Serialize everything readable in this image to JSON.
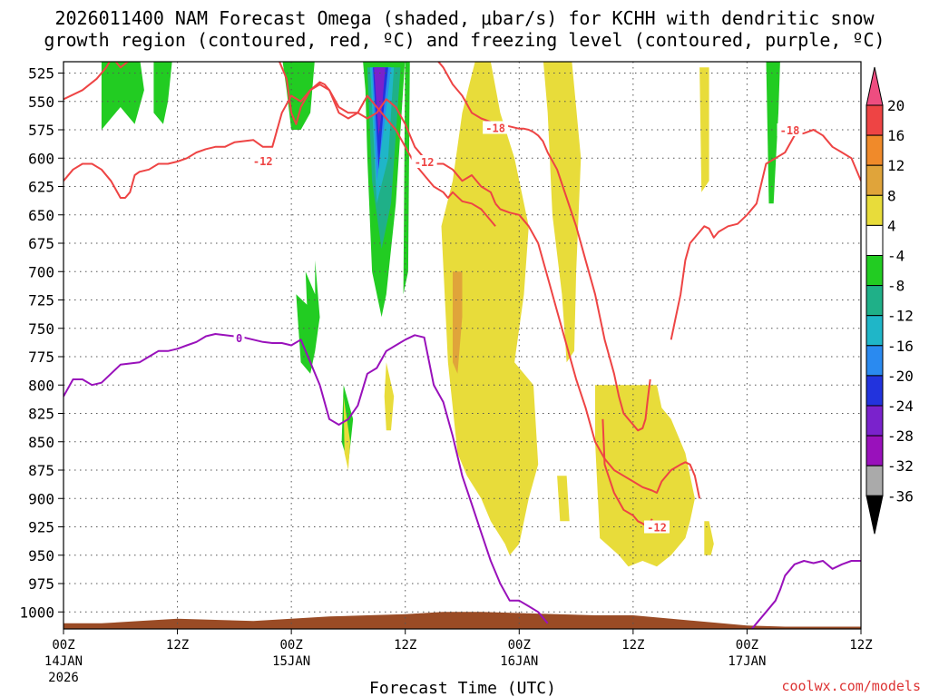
{
  "chart_data": {
    "type": "time-height",
    "title_line1": "2026011400 NAM Forecast Omega (shaded, μbar/s) for KCHH with dendritic snow",
    "title_line2": "growth region (contoured, red, ºC) and freezing level (contoured, purple, ºC)",
    "xlabel": "Forecast Time (UTC)",
    "credit": "coolwx.com/models",
    "x_range_hours": [
      0,
      84
    ],
    "y_range_hpa": [
      1015,
      515
    ],
    "x_ticks": [
      {
        "hour": 0,
        "label": "00Z",
        "sub1": "14JAN",
        "sub2": "2026"
      },
      {
        "hour": 12,
        "label": "12Z",
        "sub1": "",
        "sub2": ""
      },
      {
        "hour": 24,
        "label": "00Z",
        "sub1": "15JAN",
        "sub2": ""
      },
      {
        "hour": 36,
        "label": "12Z",
        "sub1": "",
        "sub2": ""
      },
      {
        "hour": 48,
        "label": "00Z",
        "sub1": "16JAN",
        "sub2": ""
      },
      {
        "hour": 60,
        "label": "12Z",
        "sub1": "",
        "sub2": ""
      },
      {
        "hour": 72,
        "label": "00Z",
        "sub1": "17JAN",
        "sub2": ""
      },
      {
        "hour": 84,
        "label": "12Z",
        "sub1": "",
        "sub2": ""
      }
    ],
    "y_ticks": [
      525,
      550,
      575,
      600,
      625,
      650,
      675,
      700,
      725,
      750,
      775,
      800,
      825,
      850,
      875,
      900,
      925,
      950,
      975,
      1000
    ],
    "colorbar": {
      "levels": [
        20,
        16,
        12,
        8,
        4,
        -4,
        -8,
        -12,
        -16,
        -20,
        -24,
        -28,
        -32,
        -36
      ],
      "colors": [
        "#ee4d80",
        "#ee4444",
        "#f08a2a",
        "#e0a43a",
        "#e8dc3a",
        "#ffffff",
        "#22cc22",
        "#1fb088",
        "#1fb6c8",
        "#2a8af0",
        "#2233dd",
        "#7a22cc",
        "#9911bb",
        "#aaaaaa",
        "#000000"
      ]
    },
    "omega_regions": [
      {
        "value": -6,
        "color": "#22cc22",
        "t": [
          2.0,
          4.0,
          4.0,
          4.5,
          5.0,
          6.0,
          6.5,
          7.5,
          8.5,
          8.0,
          2.0
        ],
        "p": [
          510,
          510,
          575,
          570,
          565,
          555,
          560,
          570,
          540,
          510,
          510
        ]
      },
      {
        "value": -6,
        "color": "#22cc22",
        "t": [
          9.5,
          11.5,
          11.0,
          10.5,
          9.5
        ],
        "p": [
          510,
          510,
          550,
          570,
          560
        ]
      },
      {
        "value": -6,
        "color": "#22cc22",
        "t": [
          23.0,
          26.5,
          26.0,
          25.0,
          24.0,
          23.5
        ],
        "p": [
          510,
          510,
          560,
          575,
          575,
          540
        ]
      },
      {
        "value": -6,
        "color": "#22cc22",
        "t": [
          31.5,
          36.0,
          35.0,
          34.0,
          33.5,
          32.5,
          32.0,
          31.8
        ],
        "p": [
          510,
          510,
          640,
          720,
          740,
          700,
          600,
          540
        ]
      },
      {
        "value": -10,
        "color": "#1fb088",
        "t": [
          32.0,
          35.5,
          34.5,
          33.5,
          32.5
        ],
        "p": [
          520,
          520,
          640,
          680,
          620
        ]
      },
      {
        "value": -14,
        "color": "#1fb6c8",
        "t": [
          32.3,
          34.8,
          34.2,
          33.0
        ],
        "p": [
          520,
          520,
          600,
          640
        ]
      },
      {
        "value": -18,
        "color": "#2a8af0",
        "t": [
          32.5,
          34.5,
          33.8,
          33.0
        ],
        "p": [
          520,
          520,
          570,
          620
        ]
      },
      {
        "value": -22,
        "color": "#2233dd",
        "t": [
          32.6,
          34.2,
          33.7,
          33.2
        ],
        "p": [
          520,
          520,
          560,
          610
        ]
      },
      {
        "value": -26,
        "color": "#7a22cc",
        "t": [
          32.7,
          33.9,
          33.5,
          33.2
        ],
        "p": [
          520,
          520,
          560,
          580
        ]
      },
      {
        "value": -6,
        "color": "#22cc22",
        "t": [
          25.5,
          26.5,
          26.5,
          27.0,
          26.5,
          25.8
        ],
        "p": [
          700,
          720,
          690,
          740,
          760,
          760
        ]
      },
      {
        "value": -6,
        "color": "#22cc22",
        "t": [
          24.5,
          27.0,
          26.5,
          26.0,
          25.0
        ],
        "p": [
          720,
          740,
          770,
          790,
          780
        ]
      },
      {
        "value": -6,
        "color": "#22cc22",
        "t": [
          29.5,
          30.5,
          30.0,
          29.3
        ],
        "p": [
          800,
          830,
          870,
          850
        ]
      },
      {
        "value": -6,
        "color": "#22cc22",
        "t": [
          36.0,
          36.5,
          36.3,
          35.8
        ],
        "p": [
          500,
          500,
          700,
          720
        ]
      },
      {
        "value": -6,
        "color": "#22cc22",
        "t": [
          74.0,
          75.5,
          75.3,
          74.8,
          74.3
        ],
        "p": [
          510,
          510,
          560,
          640,
          640
        ]
      },
      {
        "value": 6,
        "color": "#e8dc3a",
        "t": [
          43.5,
          45.0,
          46.0,
          47.5,
          49.0,
          48.5,
          47.5,
          49.5,
          50.0,
          49.0,
          48.0,
          47.0,
          46.5,
          45.0,
          44.0,
          42.5,
          41.5,
          40.5,
          39.8,
          41.0,
          42.0
        ],
        "p": [
          510,
          515,
          560,
          600,
          660,
          720,
          780,
          800,
          870,
          900,
          940,
          950,
          940,
          920,
          900,
          880,
          860,
          780,
          660,
          620,
          560
        ]
      },
      {
        "value": 6,
        "color": "#e8dc3a",
        "t": [
          50.5,
          53.5,
          54.5,
          54.0,
          53.8,
          53.0,
          52.5,
          51.5,
          51.0
        ],
        "p": [
          510,
          510,
          600,
          700,
          770,
          780,
          720,
          650,
          560
        ]
      },
      {
        "value": 6,
        "color": "#e8dc3a",
        "t": [
          56.0,
          62.5,
          63.0,
          64.0,
          65.5,
          66.5,
          66.0,
          65.5,
          64.0,
          62.5,
          61.0,
          59.5,
          58.5,
          56.5,
          56.0
        ],
        "p": [
          800,
          800,
          820,
          830,
          860,
          900,
          920,
          935,
          950,
          960,
          955,
          960,
          950,
          935,
          850
        ]
      },
      {
        "value": 6,
        "color": "#e8dc3a",
        "t": [
          67.5,
          68.0,
          68.5,
          68.2,
          67.5
        ],
        "p": [
          920,
          920,
          940,
          950,
          950
        ]
      },
      {
        "value": 6,
        "color": "#e8dc3a",
        "t": [
          34.0,
          34.8,
          34.5,
          34.0,
          33.8
        ],
        "p": [
          780,
          810,
          840,
          840,
          810
        ]
      },
      {
        "value": 6,
        "color": "#e8dc3a",
        "t": [
          29.5,
          30.2,
          30.0,
          29.6
        ],
        "p": [
          810,
          850,
          875,
          860
        ]
      },
      {
        "value": 6,
        "color": "#e8dc3a",
        "t": [
          52.0,
          53.0,
          53.3,
          52.3
        ],
        "p": [
          880,
          880,
          920,
          920
        ]
      },
      {
        "value": 6,
        "color": "#e8dc3a",
        "t": [
          67.0,
          68.0,
          68.0,
          67.2
        ],
        "p": [
          520,
          520,
          620,
          630
        ]
      },
      {
        "value": 10,
        "color": "#e0a43a",
        "t": [
          41.0,
          42.0,
          42.0,
          41.5,
          41.0
        ],
        "p": [
          700,
          700,
          740,
          790,
          780
        ]
      }
    ],
    "contours": [
      {
        "name": "dgz-upper-m18",
        "color": "#ee4444",
        "label": "-18",
        "t": [
          0,
          2,
          3.5,
          4.5,
          5,
          5.5,
          6,
          7.5,
          8,
          9,
          10,
          11,
          12,
          13,
          14,
          15,
          16,
          17,
          18,
          19,
          20,
          20.5,
          21,
          22,
          22.5,
          23,
          23.5,
          24,
          24.5,
          25,
          26,
          27,
          27.5,
          28,
          29,
          30,
          31,
          32,
          33,
          34,
          35,
          36,
          37,
          38,
          39,
          40,
          40.5,
          41,
          42,
          43,
          44,
          45,
          45.5
        ],
        "p": [
          548,
          540,
          530,
          520,
          513,
          515,
          520,
          510,
          508,
          505,
          500,
          502,
          505,
          500,
          510,
          512,
          510,
          508,
          506,
          505,
          500,
          502,
          505,
          510,
          510,
          520,
          530,
          560,
          570,
          555,
          540,
          533,
          535,
          540,
          560,
          565,
          560,
          545,
          555,
          565,
          575,
          590,
          605,
          615,
          625,
          630,
          635,
          630,
          638,
          640,
          645,
          655,
          660
        ]
      },
      {
        "name": "dgz-lower-m12",
        "color": "#ee4444",
        "label": "-12",
        "t": [
          0,
          1,
          2,
          3,
          4,
          5,
          6,
          6.5,
          7,
          7.5,
          8,
          9,
          10,
          11,
          12,
          13,
          14,
          15,
          16,
          17,
          18,
          19,
          20,
          21,
          22,
          23,
          24,
          25,
          26,
          27,
          28,
          29,
          30,
          31,
          32,
          33,
          34,
          35,
          36,
          37,
          38,
          39,
          40,
          41,
          42,
          43,
          44,
          45,
          45.5
        ],
        "p": [
          620,
          610,
          605,
          605,
          610,
          620,
          635,
          635,
          630,
          615,
          612,
          610,
          605,
          605,
          603,
          600,
          595,
          592,
          590,
          590,
          586,
          585,
          584,
          590,
          590,
          560,
          545,
          550,
          540,
          535,
          540,
          555,
          560,
          560,
          565,
          560,
          548,
          555,
          570,
          590,
          600,
          605,
          605,
          610,
          620,
          615,
          625,
          630,
          640
        ]
      },
      {
        "name": "dgz-m18-descending",
        "color": "#ee4444",
        "label": "",
        "t": [
          39,
          40,
          41,
          42,
          43,
          44,
          45,
          46,
          47,
          48,
          48.5,
          49,
          49.5,
          50,
          50.5,
          51,
          52,
          53,
          54,
          55,
          56,
          57,
          58,
          58.5,
          59,
          59.5,
          60,
          60.5,
          61,
          61.3,
          61.5,
          61.8
        ],
        "p": [
          510,
          520,
          535,
          545,
          560,
          565,
          568,
          570,
          572,
          574,
          574,
          575,
          577,
          580,
          585,
          595,
          610,
          635,
          660,
          690,
          720,
          760,
          790,
          810,
          825,
          830,
          835,
          840,
          838,
          830,
          815,
          795
        ]
      },
      {
        "name": "dgz-m12-descending",
        "color": "#ee4444",
        "label": "",
        "t": [
          45.5,
          46,
          47,
          48,
          49,
          50,
          51,
          52,
          53,
          54,
          55,
          56,
          57,
          58,
          59,
          60,
          61,
          62,
          62.5,
          63,
          64,
          65,
          65.5,
          66,
          66.5,
          67
        ],
        "p": [
          640,
          645,
          648,
          650,
          660,
          675,
          705,
          735,
          765,
          795,
          820,
          850,
          865,
          875,
          880,
          885,
          890,
          893,
          895,
          885,
          875,
          870,
          868,
          870,
          880,
          900
        ]
      },
      {
        "name": "dgz-m12-lower-end",
        "color": "#ee4444",
        "label": "-12",
        "t": [
          56.8,
          57,
          58,
          59,
          60,
          60.5,
          61,
          61.5,
          62
        ],
        "p": [
          830,
          870,
          895,
          910,
          915,
          920,
          922,
          925,
          918
        ]
      },
      {
        "name": "dgz-m18-right",
        "color": "#ee4444",
        "label": "-18",
        "t": [
          64.0,
          64.5,
          65.0,
          65.5,
          66.0,
          67.0,
          67.5,
          68.0,
          68.5,
          69.0,
          70.0,
          71.0,
          72.0,
          73.0,
          74.0,
          75.0,
          76.0,
          77.0,
          78.0,
          79.0,
          80.0,
          81.0,
          82.0,
          83.0,
          84.0
        ],
        "p": [
          760,
          740,
          720,
          690,
          675,
          665,
          660,
          662,
          670,
          665,
          660,
          658,
          650,
          640,
          605,
          600,
          595,
          580,
          578,
          575,
          580,
          590,
          595,
          600,
          620
        ]
      },
      {
        "name": "freezing-level-0",
        "color": "#9911bb",
        "label": "0",
        "t": [
          0,
          1,
          2,
          3,
          4,
          5,
          6,
          7,
          8,
          9,
          10,
          11,
          12,
          13,
          14,
          15,
          16,
          17,
          18,
          19,
          20,
          21,
          22,
          23,
          24,
          25,
          26,
          27,
          28,
          29,
          30,
          31,
          32,
          33,
          34,
          35,
          36,
          37,
          38,
          39,
          40,
          41,
          42,
          43,
          44,
          45,
          46,
          47,
          48,
          49,
          50,
          51
        ],
        "p": [
          810,
          795,
          795,
          800,
          798,
          790,
          782,
          781,
          780,
          775,
          770,
          770,
          768,
          765,
          762,
          757,
          755,
          756,
          757,
          758,
          760,
          762,
          763,
          763,
          765,
          760,
          780,
          800,
          830,
          835,
          830,
          818,
          790,
          785,
          770,
          765,
          760,
          756,
          758,
          800,
          815,
          845,
          880,
          905,
          930,
          955,
          975,
          990,
          990,
          995,
          1000,
          1010
        ]
      },
      {
        "name": "freezing-level-0-right",
        "color": "#9911bb",
        "label": "",
        "t": [
          72.5,
          73.0,
          74.0,
          75.0,
          75.5,
          76.0,
          77.0,
          78.0,
          79.0,
          80.0,
          81.0,
          82.0,
          83.0,
          84.0
        ],
        "p": [
          1015,
          1010,
          1000,
          990,
          980,
          968,
          958,
          955,
          957,
          955,
          962,
          958,
          955,
          955
        ]
      }
    ],
    "label_positions": [
      {
        "text": "-12",
        "t": 21.0,
        "p": 602
      },
      {
        "text": "-18",
        "t": 45.5,
        "p": 573
      },
      {
        "text": "-12",
        "t": 38.0,
        "p": 603
      },
      {
        "text": "-18",
        "t": 76.5,
        "p": 575
      },
      {
        "text": "-12",
        "t": 62.5,
        "p": 925
      },
      {
        "text": "0",
        "t": 18.5,
        "p": 758
      }
    ],
    "terrain": {
      "color": "#9a4b25",
      "t": [
        0,
        4,
        8,
        12,
        16,
        20,
        24,
        28,
        32,
        36,
        40,
        44,
        48,
        52,
        56,
        60,
        64,
        68,
        72,
        76,
        80,
        84
      ],
      "p": [
        1010,
        1010,
        1008,
        1006,
        1007,
        1008,
        1006,
        1004,
        1003,
        1002,
        1000,
        1000,
        1001,
        1002,
        1003,
        1003,
        1006,
        1009,
        1012,
        1013,
        1013,
        1013
      ]
    }
  }
}
